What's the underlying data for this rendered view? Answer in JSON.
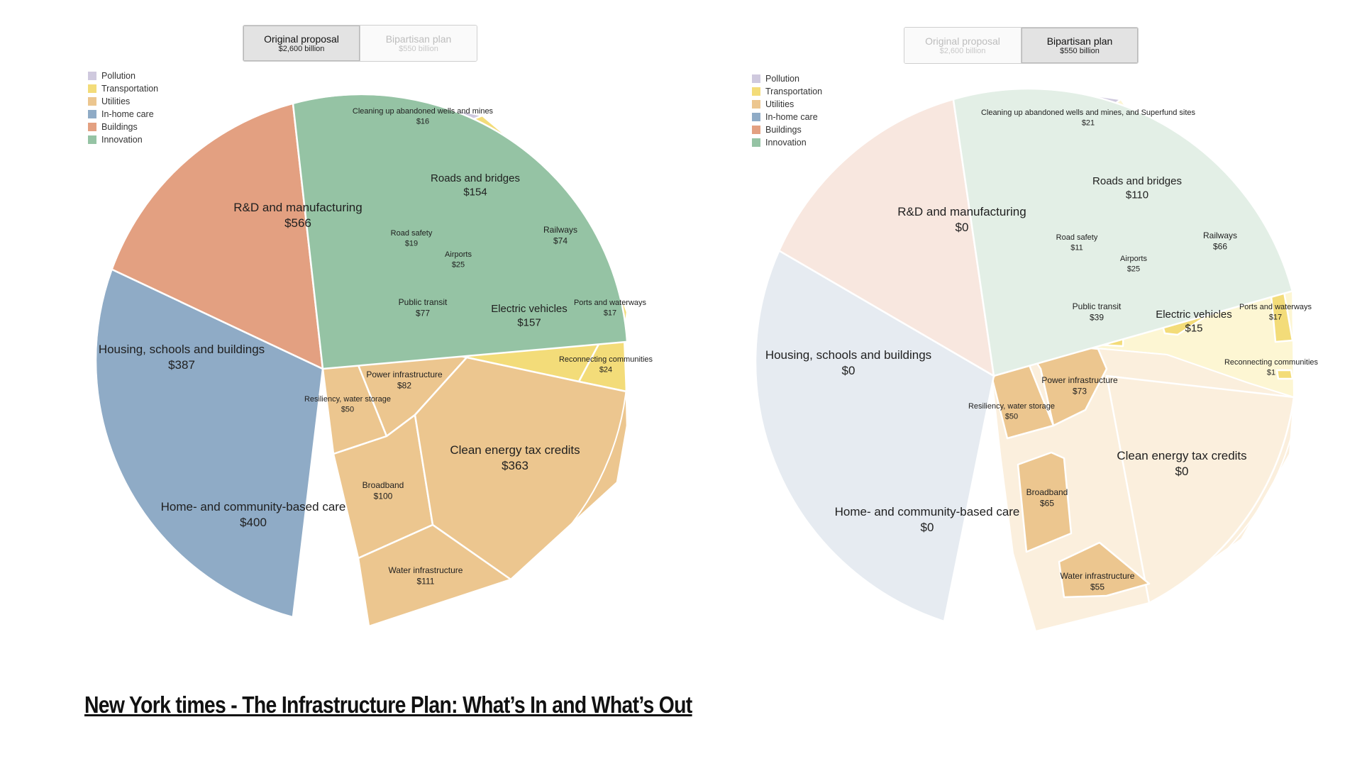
{
  "chart_data": [
    {
      "type": "pie",
      "toggle": {
        "options": [
          {
            "label": "Original proposal",
            "sub": "$2,600 billion"
          },
          {
            "label": "Bipartisan plan",
            "sub": "$550 billion"
          }
        ],
        "selected": 0
      },
      "legend": [
        {
          "name": "Pollution",
          "color": "#cfc9de"
        },
        {
          "name": "Transportation",
          "color": "#f3dc79"
        },
        {
          "name": "Utilities",
          "color": "#ecc68f"
        },
        {
          "name": "In-home care",
          "color": "#8fabc6"
        },
        {
          "name": "Buildings",
          "color": "#e3a081"
        },
        {
          "name": "Innovation",
          "color": "#95c3a4"
        }
      ],
      "slices": [
        {
          "name": "Cleaning up abandoned wells and mines",
          "value": 16,
          "value_label": "$16",
          "group": "Pollution"
        },
        {
          "name": "Roads and bridges",
          "value": 154,
          "value_label": "$154",
          "group": "Transportation"
        },
        {
          "name": "Road safety",
          "value": 19,
          "value_label": "$19",
          "group": "Transportation"
        },
        {
          "name": "Airports",
          "value": 25,
          "value_label": "$25",
          "group": "Transportation"
        },
        {
          "name": "Railways",
          "value": 74,
          "value_label": "$74",
          "group": "Transportation"
        },
        {
          "name": "Public transit",
          "value": 77,
          "value_label": "$77",
          "group": "Transportation"
        },
        {
          "name": "Electric vehicles",
          "value": 157,
          "value_label": "$157",
          "group": "Transportation"
        },
        {
          "name": "Ports and waterways",
          "value": 17,
          "value_label": "$17",
          "group": "Transportation"
        },
        {
          "name": "Reconnecting communities",
          "value": 24,
          "value_label": "$24",
          "group": "Transportation"
        },
        {
          "name": "Power infrastructure",
          "value": 82,
          "value_label": "$82",
          "group": "Utilities"
        },
        {
          "name": "Resiliency, water storage",
          "value": 50,
          "value_label": "$50",
          "group": "Utilities"
        },
        {
          "name": "Broadband",
          "value": 100,
          "value_label": "$100",
          "group": "Utilities"
        },
        {
          "name": "Clean energy tax credits",
          "value": 363,
          "value_label": "$363",
          "group": "Utilities"
        },
        {
          "name": "Water infrastructure",
          "value": 111,
          "value_label": "$111",
          "group": "Utilities"
        },
        {
          "name": "Home- and community-based care",
          "value": 400,
          "value_label": "$400",
          "group": "In-home care"
        },
        {
          "name": "Housing, schools and buildings",
          "value": 387,
          "value_label": "$387",
          "group": "Buildings"
        },
        {
          "name": "R&D and manufacturing",
          "value": 566,
          "value_label": "$566",
          "group": "Innovation"
        }
      ]
    },
    {
      "type": "pie",
      "toggle": {
        "options": [
          {
            "label": "Original proposal",
            "sub": "$2,600 billion"
          },
          {
            "label": "Bipartisan plan",
            "sub": "$550 billion"
          }
        ],
        "selected": 1
      },
      "legend": [
        {
          "name": "Pollution",
          "color": "#cfc9de"
        },
        {
          "name": "Transportation",
          "color": "#f3dc79"
        },
        {
          "name": "Utilities",
          "color": "#ecc68f"
        },
        {
          "name": "In-home care",
          "color": "#8fabc6"
        },
        {
          "name": "Buildings",
          "color": "#e3a081"
        },
        {
          "name": "Innovation",
          "color": "#95c3a4"
        }
      ],
      "slices": [
        {
          "name": "Cleaning up abandoned wells and mines, and Superfund sites",
          "value": 21,
          "value_label": "$21",
          "group": "Pollution"
        },
        {
          "name": "Roads and bridges",
          "value": 110,
          "value_label": "$110",
          "group": "Transportation"
        },
        {
          "name": "Road safety",
          "value": 11,
          "value_label": "$11",
          "group": "Transportation"
        },
        {
          "name": "Airports",
          "value": 25,
          "value_label": "$25",
          "group": "Transportation"
        },
        {
          "name": "Railways",
          "value": 66,
          "value_label": "$66",
          "group": "Transportation"
        },
        {
          "name": "Public transit",
          "value": 39,
          "value_label": "$39",
          "group": "Transportation"
        },
        {
          "name": "Electric vehicles",
          "value": 15,
          "value_label": "$15",
          "group": "Transportation"
        },
        {
          "name": "Ports and waterways",
          "value": 17,
          "value_label": "$17",
          "group": "Transportation"
        },
        {
          "name": "Reconnecting communities",
          "value": 1,
          "value_label": "$1",
          "group": "Transportation"
        },
        {
          "name": "Power infrastructure",
          "value": 73,
          "value_label": "$73",
          "group": "Utilities"
        },
        {
          "name": "Resiliency, water storage",
          "value": 50,
          "value_label": "$50",
          "group": "Utilities"
        },
        {
          "name": "Broadband",
          "value": 65,
          "value_label": "$65",
          "group": "Utilities"
        },
        {
          "name": "Clean energy tax credits",
          "value": 0,
          "value_label": "$0",
          "group": "Utilities"
        },
        {
          "name": "Water infrastructure",
          "value": 55,
          "value_label": "$55",
          "group": "Utilities"
        },
        {
          "name": "Home- and community-based care",
          "value": 0,
          "value_label": "$0",
          "group": "In-home care"
        },
        {
          "name": "Housing, schools and buildings",
          "value": 0,
          "value_label": "$0",
          "group": "Buildings"
        },
        {
          "name": "R&D and manufacturing",
          "value": 0,
          "value_label": "$0",
          "group": "Innovation"
        }
      ]
    }
  ],
  "caption": "New York times - The Infrastructure Plan: What’s In and What’s Out"
}
